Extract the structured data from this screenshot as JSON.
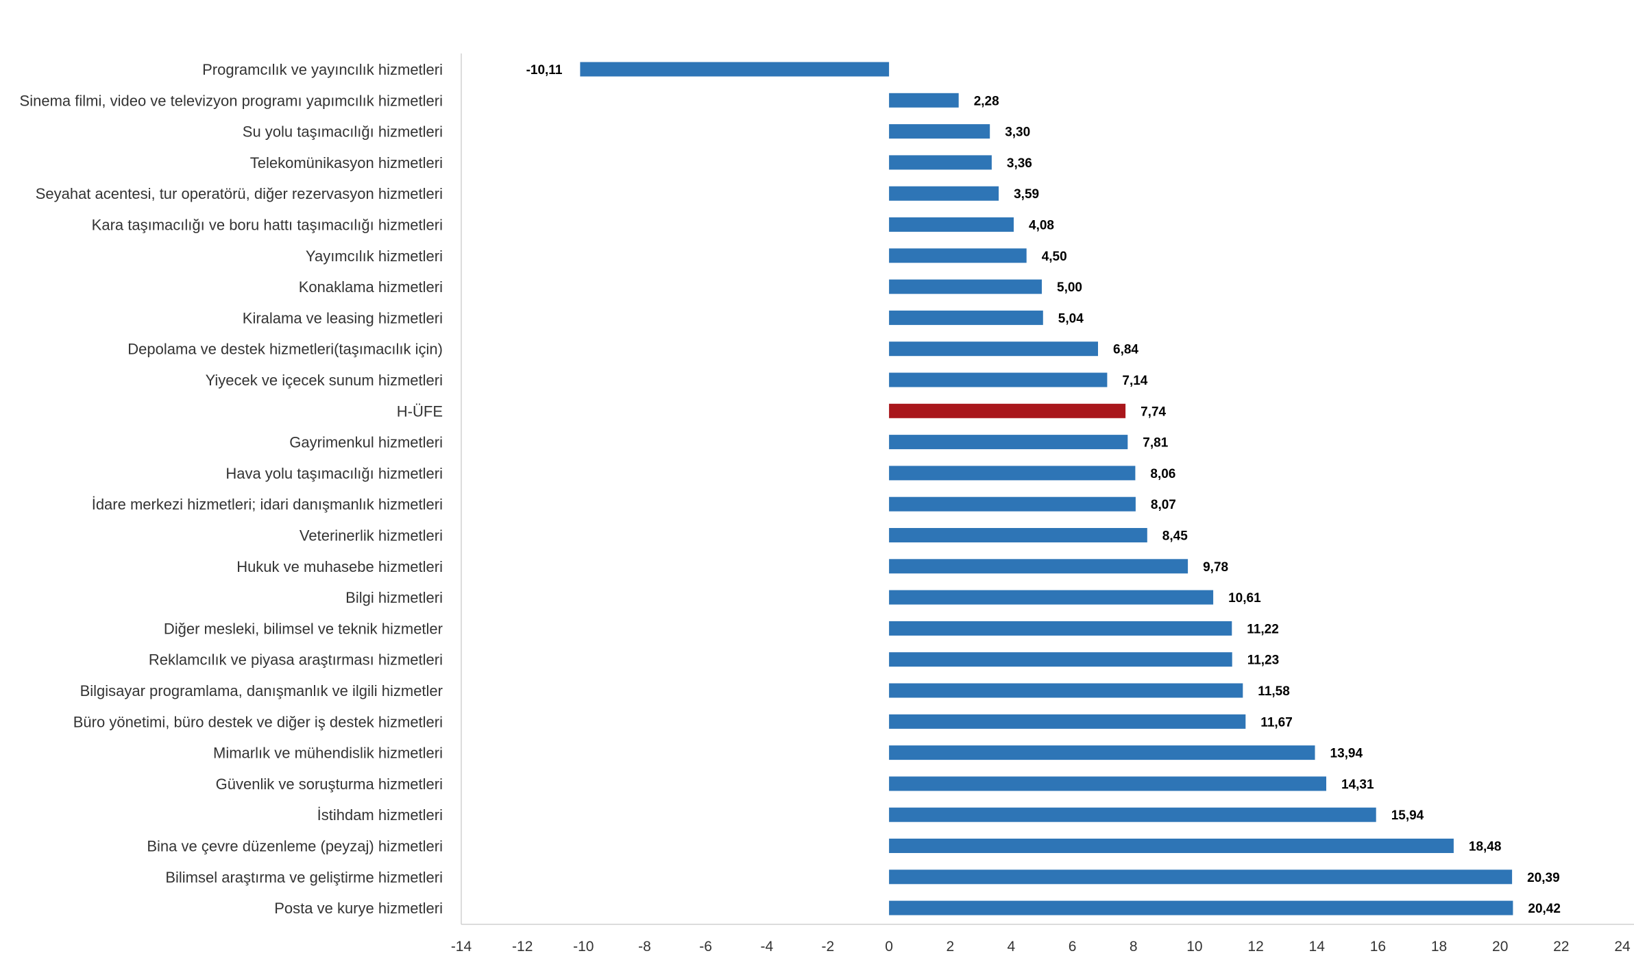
{
  "chart_data": {
    "type": "bar",
    "orientation": "horizontal",
    "title": "",
    "xlabel": "",
    "ylabel": "",
    "xlim": [
      -14,
      24
    ],
    "x_ticks": [
      "-14",
      "-12",
      "-10",
      "-8",
      "-6",
      "-4",
      "-2",
      "0",
      "2",
      "4",
      "6",
      "8",
      "10",
      "12",
      "14",
      "16",
      "18",
      "20",
      "22",
      "24"
    ],
    "grid": false,
    "default_color": "#2e75b6",
    "highlight_color": "#a9161b",
    "categories": [
      "Programcılık ve yayıncılık hizmetleri",
      "Sinema filmi, video ve televizyon programı yapımcılık hizmetleri",
      "Su yolu taşımacılığı hizmetleri",
      "Telekomünikasyon hizmetleri",
      "Seyahat acentesi, tur operatörü, diğer rezervasyon hizmetleri",
      "Kara taşımacılığı ve boru hattı taşımacılığı hizmetleri",
      "Yayımcılık hizmetleri",
      "Konaklama hizmetleri",
      "Kiralama ve leasing hizmetleri",
      "Depolama ve destek hizmetleri(taşımacılık için)",
      "Yiyecek ve içecek sunum hizmetleri",
      "H-ÜFE",
      "Gayrimenkul hizmetleri",
      "Hava yolu taşımacılığı hizmetleri",
      "İdare merkezi hizmetleri; idari danışmanlık hizmetleri",
      "Veterinerlik hizmetleri",
      "Hukuk ve muhasebe hizmetleri",
      "Bilgi hizmetleri",
      "Diğer mesleki, bilimsel ve teknik hizmetler",
      "Reklamcılık ve piyasa araştırması hizmetleri",
      "Bilgisayar programlama, danışmanlık ve ilgili hizmetler",
      "Büro yönetimi, büro destek ve diğer iş destek hizmetleri",
      "Mimarlık ve mühendislik hizmetleri",
      "Güvenlik ve soruşturma hizmetleri",
      "İstihdam hizmetleri",
      "Bina ve çevre düzenleme (peyzaj) hizmetleri",
      "Bilimsel araştırma ve geliştirme hizmetleri",
      "Posta ve kurye hizmetleri"
    ],
    "values": [
      -10.11,
      2.28,
      3.3,
      3.36,
      3.59,
      4.08,
      4.5,
      5.0,
      5.04,
      6.84,
      7.14,
      7.74,
      7.81,
      8.06,
      8.07,
      8.45,
      9.78,
      10.61,
      11.22,
      11.23,
      11.58,
      11.67,
      13.94,
      14.31,
      15.94,
      18.48,
      20.39,
      20.42
    ],
    "value_labels": [
      "-10,11",
      "2,28",
      "3,30",
      "3,36",
      "3,59",
      "4,08",
      "4,50",
      "5,00",
      "5,04",
      "6,84",
      "7,14",
      "7,74",
      "7,81",
      "8,06",
      "8,07",
      "8,45",
      "9,78",
      "10,61",
      "11,22",
      "11,23",
      "11,58",
      "11,67",
      "13,94",
      "14,31",
      "15,94",
      "18,48",
      "20,39",
      "20,42"
    ],
    "highlight_category": "H-ÜFE"
  }
}
